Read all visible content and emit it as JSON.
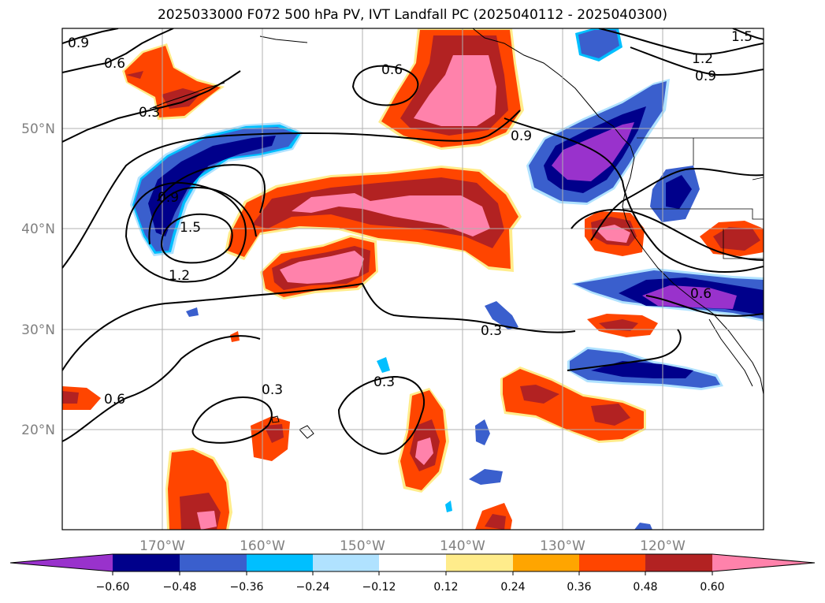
{
  "title": "2025033000 F072 500 hPa PV, IVT Landfall PC (2025040112 - 2025040300)",
  "map": {
    "lat_labels": [
      "50°N",
      "40°N",
      "30°N",
      "20°N"
    ],
    "lon_labels": [
      "170°W",
      "160°W",
      "150°W",
      "140°W",
      "130°W",
      "120°W"
    ],
    "contour_labels": [
      "0.9",
      "0.6",
      "0.3",
      "0.6",
      "0.9",
      "1.5",
      "1.2",
      "0.9",
      "0.9",
      "1.5",
      "1.2",
      "0.3",
      "0.6",
      "0.3",
      "0.3",
      "0.6"
    ]
  },
  "colorbar": {
    "ticks": [
      "−0.60",
      "−0.48",
      "−0.36",
      "−0.24",
      "−0.12",
      "0.12",
      "0.24",
      "0.36",
      "0.48",
      "0.60"
    ],
    "colors": [
      "#9932cc",
      "#00008b",
      "#3a5fcd",
      "#00bfff",
      "#b0e2ff",
      "#ffffff",
      "#ffec8b",
      "#ffa500",
      "#ff4500",
      "#b22222",
      "#ff82ab"
    ]
  }
}
